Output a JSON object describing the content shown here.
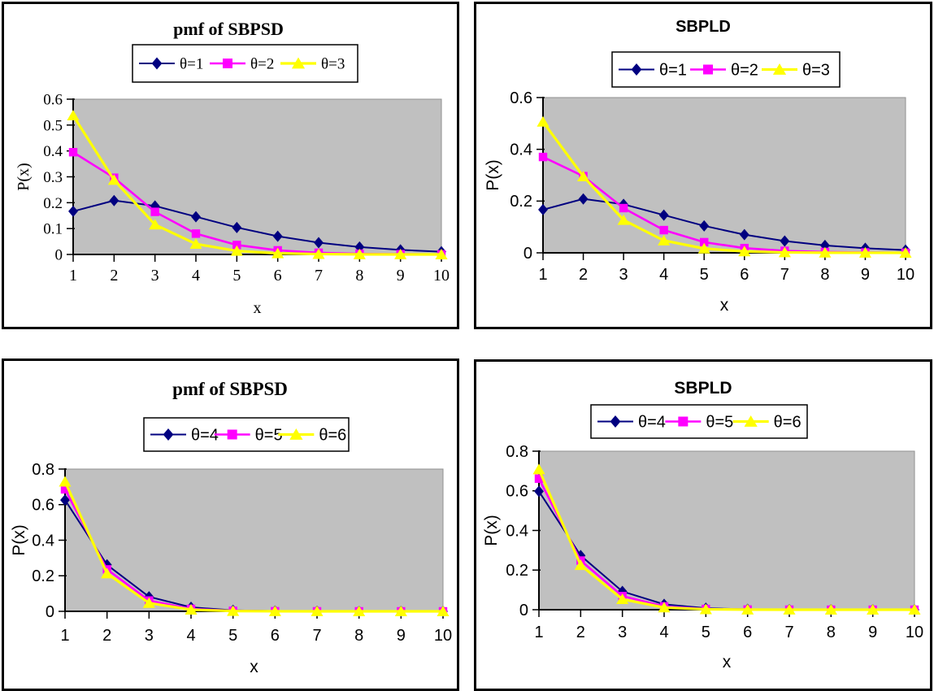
{
  "figure": {
    "background": "#FFFFFF",
    "box_border_color": "#000000"
  },
  "colors": {
    "plot_bg": "#C0C0C0",
    "plot_border": "#909090",
    "axis": "#000000",
    "legend_bg": "#FFFFFF",
    "series_navy": "#000080",
    "series_magenta": "#FF00FF",
    "series_yellow": "#FFFF00"
  },
  "chart_data": [
    {
      "id": "pmf-sbpsd-theta-1-2-3",
      "type": "line",
      "title": "pmf of SBPSD",
      "xlabel": "x",
      "ylabel": "P(x)",
      "title_style": "serif",
      "text_style": "serif",
      "grid": false,
      "legend_position": "top-center-boxed",
      "categories": [
        "1",
        "2",
        "3",
        "4",
        "5",
        "6",
        "7",
        "8",
        "9",
        "10"
      ],
      "ylim": [
        0,
        0.6
      ],
      "yticks": [
        "0.6",
        "0.5",
        "0.4",
        "0.3",
        "0.2",
        "0.1",
        "0"
      ],
      "series": [
        {
          "name": "θ=1",
          "color": "#000080",
          "marker": "diamond",
          "values": [
            0.1667,
            0.2083,
            0.1875,
            0.1458,
            0.1042,
            0.0703,
            0.0456,
            0.0286,
            0.0176,
            0.0106
          ]
        },
        {
          "name": "θ=2",
          "color": "#FF00FF",
          "marker": "square",
          "values": [
            0.3951,
            0.2963,
            0.1646,
            0.0805,
            0.0366,
            0.0159,
            0.0066,
            0.0027,
            0.0011,
            0.0004
          ]
        },
        {
          "name": "θ=3",
          "color": "#FFFF00",
          "marker": "triangle",
          "values": [
            0.5369,
            0.2876,
            0.1151,
            0.0407,
            0.0135,
            0.0043,
            0.0013,
            0.0004,
            0.0001,
            0.0
          ]
        }
      ]
    },
    {
      "id": "sbpld-theta-1-2-3",
      "type": "line",
      "title": "SBPLD",
      "xlabel": "x",
      "ylabel": "P(x)",
      "title_style": "sans",
      "text_style": "sans",
      "grid": false,
      "legend_position": "top-center-boxed",
      "categories": [
        "1",
        "2",
        "3",
        "4",
        "5",
        "6",
        "7",
        "8",
        "9",
        "10"
      ],
      "ylim": [
        0,
        0.6
      ],
      "yticks": [
        "0.6",
        "0.4",
        "0.2",
        "0"
      ],
      "series": [
        {
          "name": "θ=1",
          "color": "#000080",
          "marker": "diamond",
          "values": [
            0.1667,
            0.2083,
            0.1875,
            0.1458,
            0.1042,
            0.0703,
            0.0456,
            0.0286,
            0.0176,
            0.0106
          ]
        },
        {
          "name": "θ=2",
          "color": "#FF00FF",
          "marker": "square",
          "values": [
            0.3704,
            0.2963,
            0.1728,
            0.0878,
            0.0412,
            0.0183,
            0.0078,
            0.0033,
            0.0013,
            0.0005
          ]
        },
        {
          "name": "θ=3",
          "color": "#FFFF00",
          "marker": "triangle",
          "values": [
            0.5063,
            0.2953,
            0.1266,
            0.0475,
            0.0165,
            0.0054,
            0.0017,
            0.0005,
            0.0002,
            0.0
          ]
        }
      ]
    },
    {
      "id": "pmf-sbpsd-theta-4-5-6",
      "type": "line",
      "title": "pmf of SBPSD",
      "xlabel": "x",
      "ylabel": "P(x)",
      "title_style": "serif",
      "text_style": "sans",
      "grid": false,
      "legend_position": "top-center-boxed",
      "categories": [
        "1",
        "2",
        "3",
        "4",
        "5",
        "6",
        "7",
        "8",
        "9",
        "10"
      ],
      "ylim": [
        0,
        0.8
      ],
      "yticks": [
        "0.8",
        "0.6",
        "0.4",
        "0.2",
        "0"
      ],
      "series": [
        {
          "name": "θ=4",
          "color": "#000080",
          "marker": "diamond",
          "values": [
            0.6258,
            0.2617,
            0.0819,
            0.0228,
            0.0059,
            0.0015,
            0.0004,
            0.0001,
            0.0,
            0.0
          ]
        },
        {
          "name": "θ=5",
          "color": "#FF00FF",
          "marker": "square",
          "values": [
            0.6859,
            0.2358,
            0.0607,
            0.0139,
            0.003,
            0.0006,
            0.0001,
            0.0,
            0.0,
            0.0
          ]
        },
        {
          "name": "θ=6",
          "color": "#FFFF00",
          "marker": "triangle",
          "values": [
            0.7292,
            0.2131,
            0.0467,
            0.0091,
            0.0017,
            0.0003,
            0.0001,
            0.0,
            0.0,
            0.0
          ]
        }
      ]
    },
    {
      "id": "sbpld-theta-4-5-6",
      "type": "line",
      "title": "SBPLD",
      "xlabel": "x",
      "ylabel": "P(x)",
      "title_style": "sans",
      "text_style": "sans",
      "grid": false,
      "legend_position": "top-center-boxed",
      "categories": [
        "1",
        "2",
        "3",
        "4",
        "5",
        "6",
        "7",
        "8",
        "9",
        "10"
      ],
      "ylim": [
        0,
        0.8
      ],
      "yticks": [
        "0.8",
        "0.6",
        "0.4",
        "0.2",
        "0"
      ],
      "series": [
        {
          "name": "θ=4",
          "color": "#000080",
          "marker": "diamond",
          "values": [
            0.5973,
            0.2731,
            0.0922,
            0.0273,
            0.0075,
            0.002,
            0.0005,
            0.0001,
            0.0,
            0.0
          ]
        },
        {
          "name": "θ=5",
          "color": "#FF00FF",
          "marker": "square",
          "values": [
            0.6614,
            0.248,
            0.0689,
            0.0168,
            0.0038,
            0.0008,
            0.0002,
            0.0,
            0.0,
            0.0
          ]
        },
        {
          "name": "θ=6",
          "color": "#FFFF00",
          "marker": "triangle",
          "values": [
            0.7081,
            0.2249,
            0.053,
            0.011,
            0.0021,
            0.0004,
            0.0001,
            0.0,
            0.0,
            0.0
          ]
        }
      ]
    }
  ]
}
